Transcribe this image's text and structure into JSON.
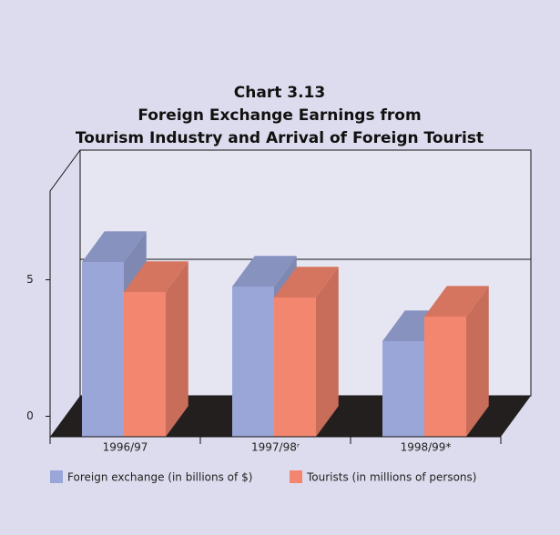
{
  "chart_data": {
    "type": "bar3d",
    "title": [
      "Chart 3.13",
      "Foreign Exchange Earnings from",
      "Tourism Industry and Arrival of Foreign Tourist"
    ],
    "categories": [
      "1996/97",
      "1997/98ʳ",
      "1998/99*"
    ],
    "series": [
      {
        "name": "Foreign exchange (in billions of $)",
        "color": "#9aa6d8",
        "values": [
          6.4,
          5.5,
          3.5
        ]
      },
      {
        "name": "Tourists (in millions of persons)",
        "color": "#f3866e",
        "values": [
          5.3,
          5.1,
          4.4
        ]
      }
    ],
    "ylim": [
      0,
      9
    ],
    "yticks": [
      0,
      5
    ],
    "grid": true
  }
}
